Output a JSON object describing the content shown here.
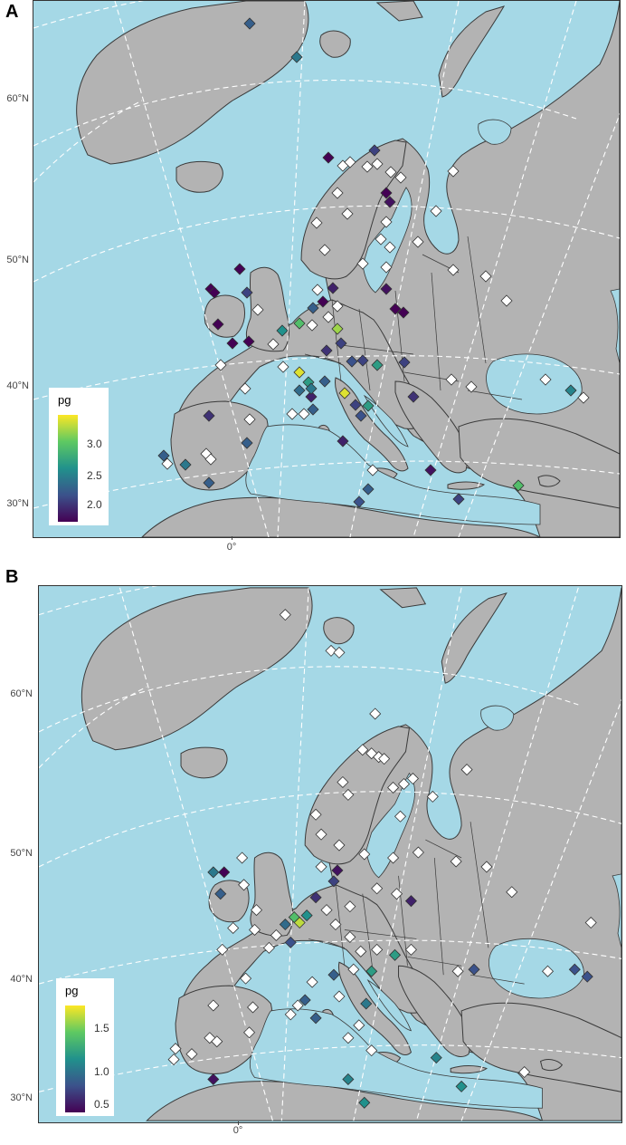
{
  "colors": {
    "sea": "#a5d8e6",
    "land": "#b3b3b3",
    "border": "#3a3a3a",
    "graticule": "#ffffff",
    "no_data": "#ffffff",
    "viridis": [
      "#440154",
      "#3b528b",
      "#21918c",
      "#5ec962",
      "#fde725"
    ]
  },
  "panels": [
    {
      "letter": "A",
      "lat_labels": [
        "60°N",
        "50°N",
        "40°N",
        "30°N"
      ],
      "lon_label": "0°",
      "legend": {
        "title": "pg",
        "min": 1.8,
        "max": 3.4,
        "ticks": [
          "3.0",
          "2.5",
          "2.0"
        ],
        "tick_values": [
          3.0,
          2.5,
          2.0
        ]
      },
      "marker": "diamond"
    },
    {
      "letter": "B",
      "lat_labels": [
        "60°N",
        "50°N",
        "40°N",
        "30°N"
      ],
      "lon_label": "0°",
      "legend": {
        "title": "pg",
        "min": 0.4,
        "max": 1.8,
        "ticks": [
          "1.5",
          "1.0",
          "0.5"
        ],
        "tick_values": [
          1.5,
          1.0,
          0.5
        ]
      },
      "marker": "diamond"
    }
  ]
}
